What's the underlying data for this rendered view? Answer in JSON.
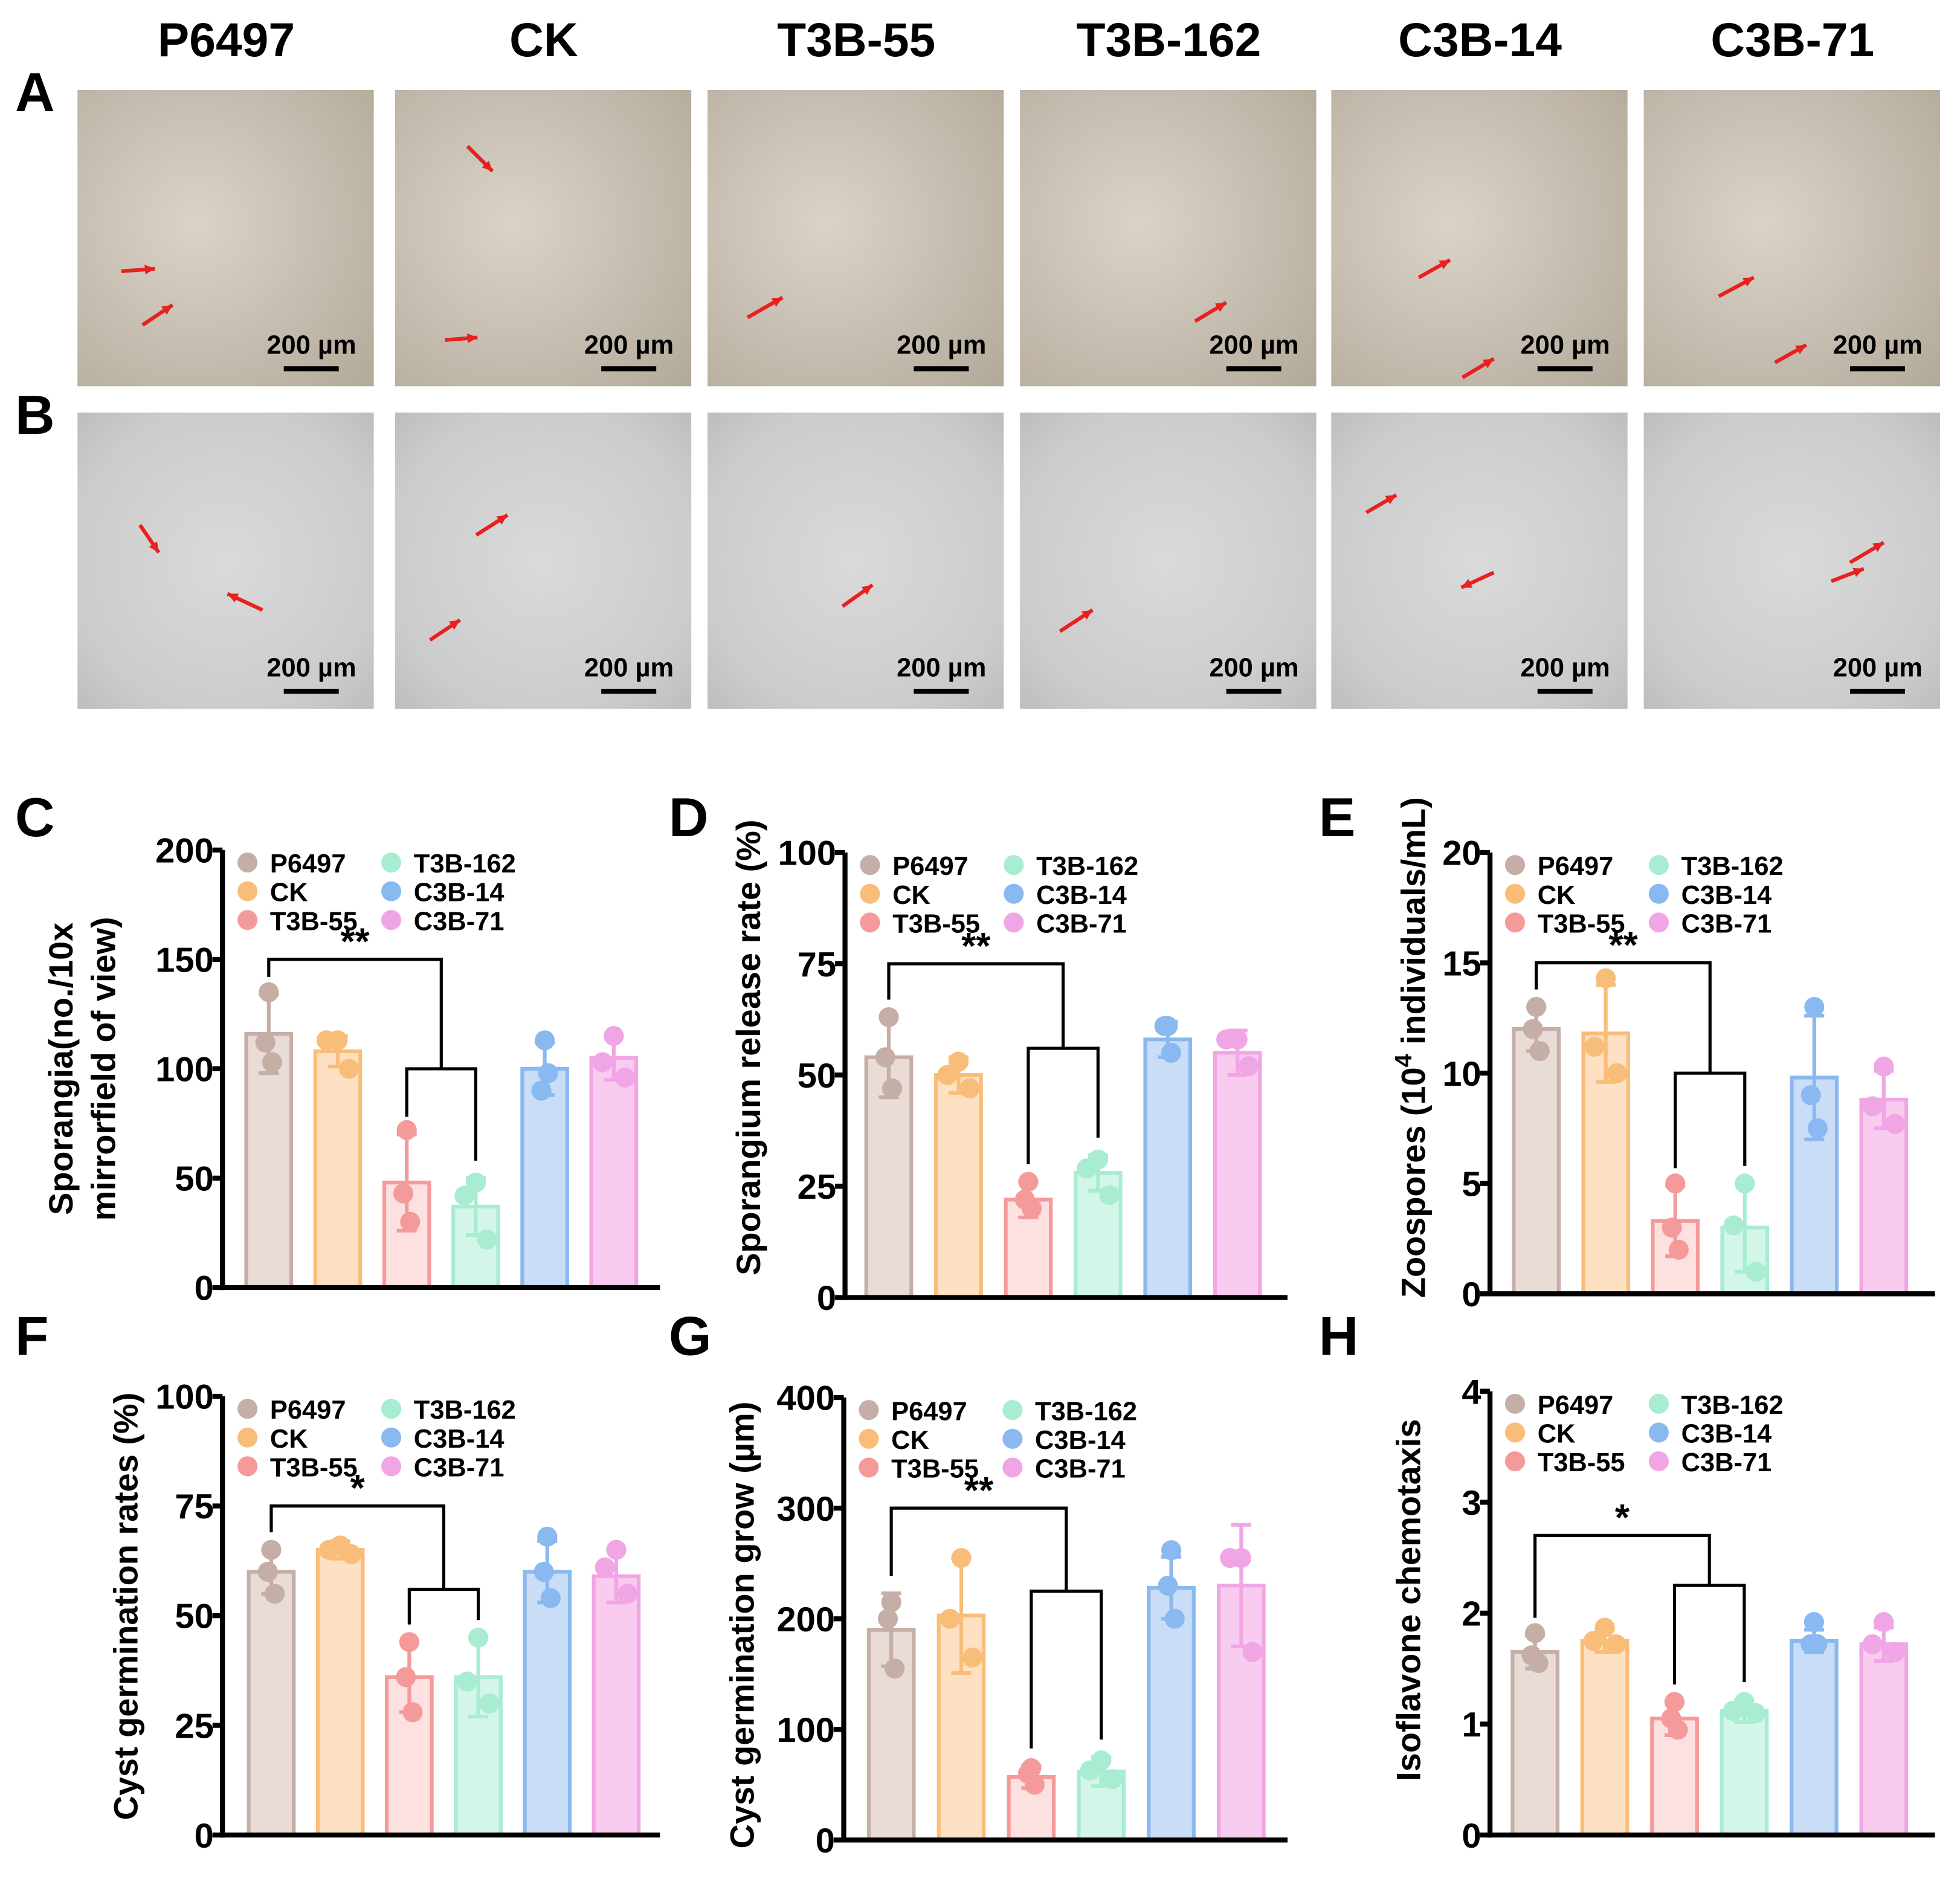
{
  "groups": [
    "P6497",
    "CK",
    "T3B-55",
    "T3B-162",
    "C3B-14",
    "C3B-71"
  ],
  "colors": {
    "edge": [
      "#c4aea5",
      "#f9bd7a",
      "#f59a9a",
      "#a8ecd2",
      "#8ab8f0",
      "#f0a6e4"
    ],
    "fill": [
      "#e9dbd6",
      "#fde1c2",
      "#fde0e0",
      "#d3f6e9",
      "#c9ddf6",
      "#f8cbef"
    ],
    "arrow": "#e8211e"
  },
  "panels": {
    "A": "A",
    "B": "B",
    "C": "C",
    "D": "D",
    "E": "E",
    "F": "F",
    "G": "G",
    "H": "H"
  },
  "scale_bar_label": "200 µm",
  "chart_data": [
    {
      "id": "C",
      "type": "bar",
      "ylabel": [
        "Sporangia(no./10x",
        "mirrorfield of view)"
      ],
      "ylim": [
        0,
        200
      ],
      "yticks": [
        0,
        50,
        100,
        150,
        200
      ],
      "categories": [
        "P6497",
        "CK",
        "T3B-55",
        "T3B-162",
        "C3B-14",
        "C3B-71"
      ],
      "values": [
        116,
        108,
        48,
        37,
        100,
        105
      ],
      "sd": [
        18,
        7,
        22,
        13,
        12,
        10
      ],
      "points": [
        [
          135,
          112,
          103
        ],
        [
          113,
          113,
          100
        ],
        [
          72,
          43,
          30
        ],
        [
          48,
          42,
          22
        ],
        [
          113,
          90,
          98
        ],
        [
          115,
          103,
          96
        ]
      ],
      "significance": {
        "label": "**",
        "outer": 150,
        "inner": 100
      }
    },
    {
      "id": "D",
      "type": "bar",
      "ylabel": [
        "Sporangium release rate (%)"
      ],
      "ylim": [
        0,
        100
      ],
      "yticks": [
        0,
        25,
        50,
        75,
        100
      ],
      "categories": [
        "P6497",
        "CK",
        "T3B-55",
        "T3B-162",
        "C3B-14",
        "C3B-71"
      ],
      "values": [
        54,
        50,
        22,
        28,
        58,
        55
      ],
      "sd": [
        9,
        4,
        4,
        4,
        4,
        5
      ],
      "points": [
        [
          63,
          54,
          47
        ],
        [
          53,
          50,
          47
        ],
        [
          26,
          22,
          20
        ],
        [
          31,
          29,
          23
        ],
        [
          61,
          61,
          55
        ],
        [
          58,
          58,
          52
        ]
      ],
      "significance": {
        "label": "**",
        "outer": 75,
        "inner": 56
      }
    },
    {
      "id": "E",
      "type": "bar",
      "ylabel_parts": [
        "Zoospores (10",
        "4",
        " individuals/mL)"
      ],
      "ylim": [
        0,
        20
      ],
      "yticks": [
        0,
        5,
        10,
        15,
        20
      ],
      "categories": [
        "P6497",
        "CK",
        "T3B-55",
        "T3B-162",
        "C3B-14",
        "C3B-71"
      ],
      "values": [
        12,
        11.8,
        3.3,
        3,
        9.8,
        8.8
      ],
      "sd": [
        1,
        2.2,
        1.6,
        2,
        2.8,
        1.3
      ],
      "points": [
        [
          13,
          12,
          11
        ],
        [
          14.3,
          11.2,
          10
        ],
        [
          5,
          3,
          2
        ],
        [
          5,
          3.1,
          1
        ],
        [
          13,
          9,
          7.5
        ],
        [
          10.3,
          8.5,
          7.7
        ]
      ],
      "significance": {
        "label": "**",
        "outer": 15,
        "inner": 10
      }
    },
    {
      "id": "F",
      "type": "bar",
      "ylabel": [
        "Cyst germination rates (%)"
      ],
      "ylim": [
        0,
        100
      ],
      "yticks": [
        0,
        25,
        50,
        75,
        100
      ],
      "categories": [
        "P6497",
        "CK",
        "T3B-55",
        "T3B-162",
        "C3B-14",
        "C3B-71"
      ],
      "values": [
        60,
        65,
        36,
        36,
        60,
        59
      ],
      "sd": [
        5,
        2,
        8,
        9,
        7,
        6
      ],
      "points": [
        [
          65,
          60,
          55
        ],
        [
          66,
          65,
          64
        ],
        [
          44,
          36,
          28
        ],
        [
          45,
          35,
          30
        ],
        [
          68,
          60,
          54
        ],
        [
          65,
          61,
          55
        ]
      ],
      "significance": {
        "label": "*",
        "outer": 75,
        "inner": 56
      }
    },
    {
      "id": "G",
      "type": "bar",
      "ylabel": [
        "Cyst germination grow (µm)"
      ],
      "ylim": [
        0,
        400
      ],
      "yticks": [
        0,
        100,
        200,
        300,
        400
      ],
      "categories": [
        "P6497",
        "CK",
        "T3B-55",
        "T3B-162",
        "C3B-14",
        "C3B-71"
      ],
      "values": [
        190,
        203,
        57,
        62,
        228,
        230
      ],
      "sd": [
        33,
        52,
        10,
        13,
        28,
        55
      ],
      "points": [
        [
          215,
          200,
          155
        ],
        [
          255,
          200,
          165
        ],
        [
          65,
          60,
          50
        ],
        [
          72,
          63,
          55
        ],
        [
          262,
          230,
          200
        ],
        [
          255,
          255,
          170
        ]
      ],
      "significance": {
        "label": "**",
        "outer": 300,
        "inner": 225
      }
    },
    {
      "id": "H",
      "type": "bar",
      "ylabel": [
        "Isoflavone chemotaxis"
      ],
      "ylim": [
        0,
        4
      ],
      "yticks": [
        0,
        1,
        2,
        3,
        4
      ],
      "categories": [
        "P6497",
        "CK",
        "T3B-55",
        "T3B-162",
        "C3B-14",
        "C3B-71"
      ],
      "values": [
        1.65,
        1.75,
        1.05,
        1.12,
        1.75,
        1.72
      ],
      "sd": [
        0.15,
        0.1,
        0.15,
        0.1,
        0.1,
        0.15
      ],
      "points": [
        [
          1.82,
          1.62,
          1.55
        ],
        [
          1.87,
          1.75,
          1.72
        ],
        [
          1.2,
          1.05,
          0.95
        ],
        [
          1.2,
          1.12,
          1.1
        ],
        [
          1.92,
          1.72,
          1.72
        ],
        [
          1.92,
          1.72,
          1.65
        ]
      ],
      "significance": {
        "label": "*",
        "outer": 2.7,
        "inner": 2.25
      }
    }
  ]
}
